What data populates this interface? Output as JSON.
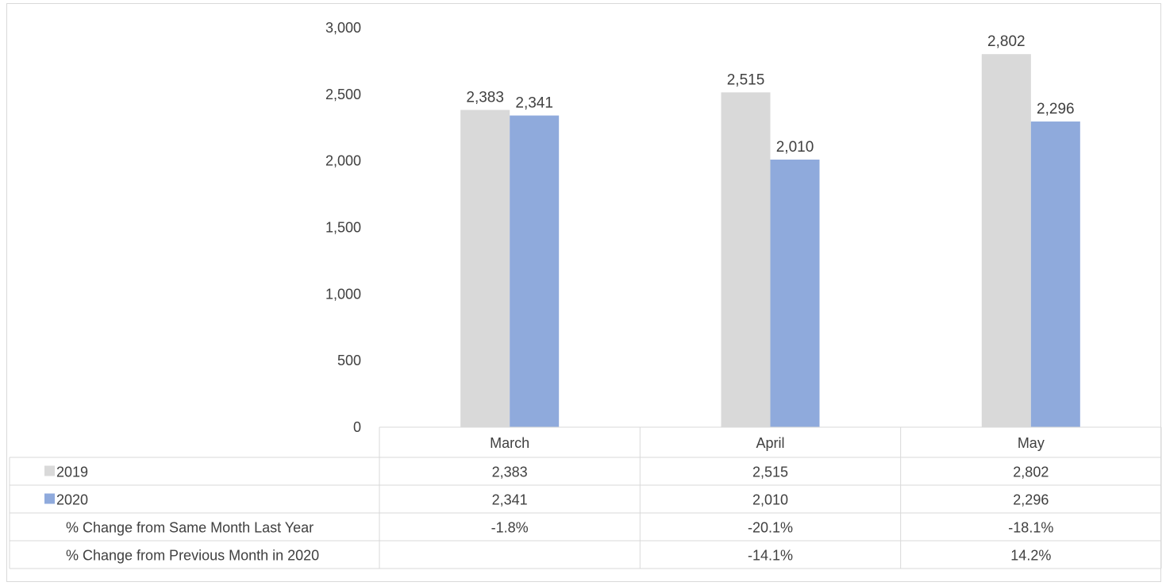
{
  "chart_data": {
    "type": "bar",
    "categories": [
      "March",
      "April",
      "May"
    ],
    "series": [
      {
        "name": "2019",
        "values": [
          2383,
          2515,
          2802
        ],
        "color": "#d9d9d9"
      },
      {
        "name": "2020",
        "values": [
          2341,
          2010,
          2296
        ],
        "color": "#8faadc"
      }
    ],
    "data_labels": [
      [
        "2,383",
        "2,515",
        "2,802"
      ],
      [
        "2,341",
        "2,010",
        "2,296"
      ]
    ],
    "ylim": [
      0,
      3000
    ],
    "yticks": [
      0,
      500,
      1000,
      1500,
      2000,
      2500,
      3000
    ],
    "ytick_labels": [
      "0",
      "500",
      "1,000",
      "1,500",
      "2,000",
      "2,500",
      "3,000"
    ],
    "grid": false,
    "legend": "data-table-left",
    "title": "",
    "xlabel": "",
    "ylabel": "",
    "data_table": {
      "header": [
        "March",
        "April",
        "May"
      ],
      "rows": [
        {
          "label": "2019",
          "legend_color": "#d9d9d9",
          "cells": [
            "2,383",
            "2,515",
            "2,802"
          ]
        },
        {
          "label": "2020",
          "legend_color": "#8faadc",
          "cells": [
            "2,341",
            "2,010",
            "2,296"
          ]
        },
        {
          "label": "% Change from Same Month Last Year",
          "legend_color": "",
          "cells": [
            "-1.8%",
            "-20.1%",
            "-18.1%"
          ]
        },
        {
          "label": "% Change from Previous Month in 2020",
          "legend_color": "",
          "cells": [
            "",
            "-14.1%",
            "14.2%"
          ]
        }
      ]
    }
  }
}
